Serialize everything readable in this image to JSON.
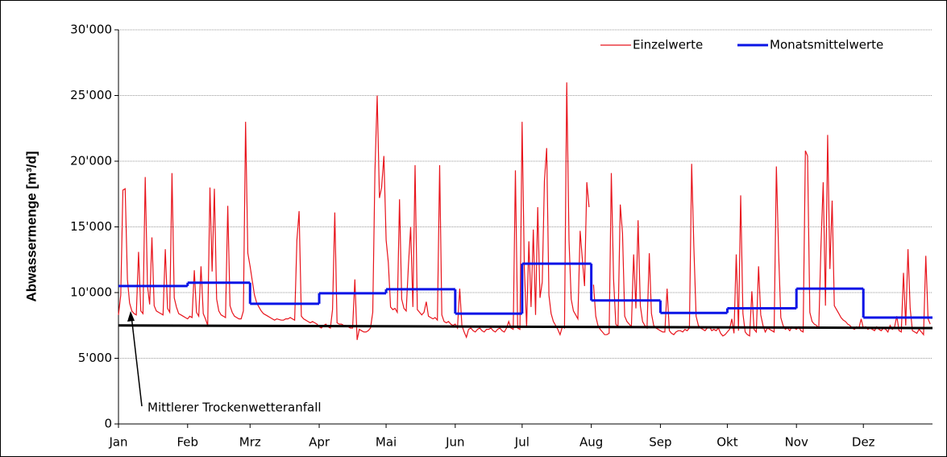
{
  "chart_data": {
    "type": "line",
    "y_label": "Abwassermenge [m³/d]",
    "annotation": "Mittlerer Trockenwetteranfall",
    "xlim": [
      0,
      365
    ],
    "xticks": [
      {
        "value": 0,
        "label": "Jan"
      },
      {
        "value": 31,
        "label": "Feb"
      },
      {
        "value": 59,
        "label": "Mrz"
      },
      {
        "value": 90,
        "label": "Apr"
      },
      {
        "value": 120,
        "label": "Mai"
      },
      {
        "value": 151,
        "label": "Jun"
      },
      {
        "value": 181,
        "label": "Jul"
      },
      {
        "value": 212,
        "label": "Aug"
      },
      {
        "value": 243,
        "label": "Sep"
      },
      {
        "value": 273,
        "label": "Okt"
      },
      {
        "value": 304,
        "label": "Nov"
      },
      {
        "value": 334,
        "label": "Dez"
      }
    ],
    "ylim": [
      0,
      30000
    ],
    "yticks": [
      0,
      {
        "value": 5000,
        "label": "5'000"
      },
      {
        "value": 10000,
        "label": "10'000"
      },
      {
        "value": 15000,
        "label": "15'000"
      },
      {
        "value": 20000,
        "label": "20'000"
      },
      {
        "value": 25000,
        "label": "25'000"
      },
      {
        "value": 30000,
        "label": "30'000"
      }
    ],
    "grid": true,
    "legend": "top-right",
    "series": [
      {
        "name": "Einzelwerte",
        "color": "#e8141c",
        "values": [
          8300,
          9800,
          17800,
          17900,
          11000,
          9200,
          8600,
          8400,
          8300,
          13100,
          8600,
          8400,
          18800,
          10500,
          9100,
          14200,
          9000,
          8600,
          8500,
          8400,
          8300,
          13300,
          8800,
          8500,
          19100,
          9600,
          8900,
          8400,
          8300,
          8200,
          8100,
          8000,
          8200,
          8100,
          11700,
          8500,
          8200,
          12000,
          8400,
          8000,
          7500,
          18000,
          11600,
          17900,
          9500,
          8600,
          8300,
          8200,
          8100,
          16600,
          9000,
          8500,
          8200,
          8100,
          8000,
          8000,
          8600,
          23000,
          13000,
          12000,
          10900,
          9800,
          9200,
          8900,
          8600,
          8400,
          8300,
          8200,
          8100,
          8000,
          7900,
          8000,
          7950,
          7900,
          7900,
          8000,
          8000,
          8100,
          8000,
          7900,
          14000,
          16200,
          8200,
          8000,
          7900,
          7800,
          7700,
          7800,
          7700,
          7600,
          7400,
          7300,
          7500,
          7600,
          7400,
          7300,
          8700,
          16100,
          7700,
          7600,
          7600,
          7500,
          7500,
          7400,
          7300,
          7300,
          11000,
          6400,
          7200,
          7100,
          7000,
          7000,
          7100,
          7300,
          8500,
          19200,
          25000,
          17200,
          18000,
          20400,
          14000,
          12300,
          8900,
          8700,
          8800,
          8500,
          17100,
          9500,
          8800,
          8600,
          12000,
          15000,
          8900,
          19700,
          8700,
          8500,
          8300,
          8500,
          9300,
          8200,
          8100,
          8000,
          8100,
          7900,
          19700,
          8300,
          7800,
          7700,
          7800,
          7600,
          7500,
          7600,
          7300,
          10300,
          7500,
          7000,
          6600,
          7200,
          7300,
          7100,
          7000,
          7200,
          7300,
          7100,
          7000,
          7200,
          7200,
          7300,
          7100,
          7000,
          7200,
          7300,
          7100,
          7000,
          7300,
          7800,
          7300,
          7200,
          19300,
          7300,
          7200,
          23000,
          11800,
          7400,
          13900,
          8900,
          14800,
          8300,
          16500,
          9600,
          10800,
          18500,
          21000,
          9800,
          8400,
          7800,
          7500,
          7200,
          6800,
          7400,
          7300,
          26000,
          14000,
          9500,
          8600,
          8300,
          8000,
          14700,
          12500,
          10500,
          18400,
          16500,
          null,
          10600,
          8200,
          7500,
          7200,
          7000,
          6800,
          6800,
          6900,
          19100,
          11000,
          7600,
          7400,
          16700,
          14500,
          8200,
          7800,
          7600,
          7400,
          12900,
          8800,
          15500,
          9000,
          7800,
          7500,
          7300,
          13000,
          8400,
          7500,
          7300,
          7200,
          7100,
          7000,
          7000,
          10300,
          7100,
          6900,
          6800,
          7000,
          7100,
          7100,
          7000,
          7200,
          7100,
          7300,
          19800,
          13500,
          8200,
          7500,
          7300,
          7200,
          7100,
          7300,
          7400,
          7100,
          7200,
          7100,
          7300,
          6900,
          6700,
          6800,
          7000,
          7200,
          8000,
          6900,
          12900,
          7100,
          17400,
          8400,
          7000,
          6800,
          6700,
          10100,
          7200,
          7000,
          12000,
          8300,
          7500,
          7000,
          7300,
          7200,
          7100,
          7000,
          19600,
          13000,
          8100,
          7500,
          7200,
          7300,
          7100,
          7400,
          7300,
          7200,
          7400,
          7100,
          7000,
          20800,
          20400,
          8500,
          7800,
          7600,
          7500,
          7300,
          13500,
          18400,
          9000,
          22000,
          11800,
          17000,
          9000,
          8700,
          8400,
          8100,
          7900,
          7800,
          7600,
          7500,
          7300,
          7200,
          7400,
          7300,
          8000,
          7300,
          7400,
          7200,
          7300,
          7200,
          7100,
          7400,
          7200,
          7100,
          7300,
          7200,
          7000,
          7500,
          7200,
          7400,
          8200,
          7100,
          7000,
          11500,
          7500,
          13300,
          8800,
          7100,
          7000,
          6900,
          7200,
          7000,
          6800,
          12800,
          8000,
          7600
        ]
      },
      {
        "name": "Monatsmittelwerte",
        "color": "#0a14e6",
        "step": true,
        "x": [
          0,
          31,
          59,
          90,
          120,
          151,
          181,
          212,
          243,
          273,
          304,
          334
        ],
        "values": [
          10500,
          10750,
          9150,
          9950,
          10250,
          8400,
          12200,
          9400,
          8450,
          8800,
          10300,
          8100
        ]
      }
    ],
    "baseline": {
      "color": "#000000",
      "x": [
        0,
        365
      ],
      "values": [
        7500,
        7300
      ]
    }
  }
}
